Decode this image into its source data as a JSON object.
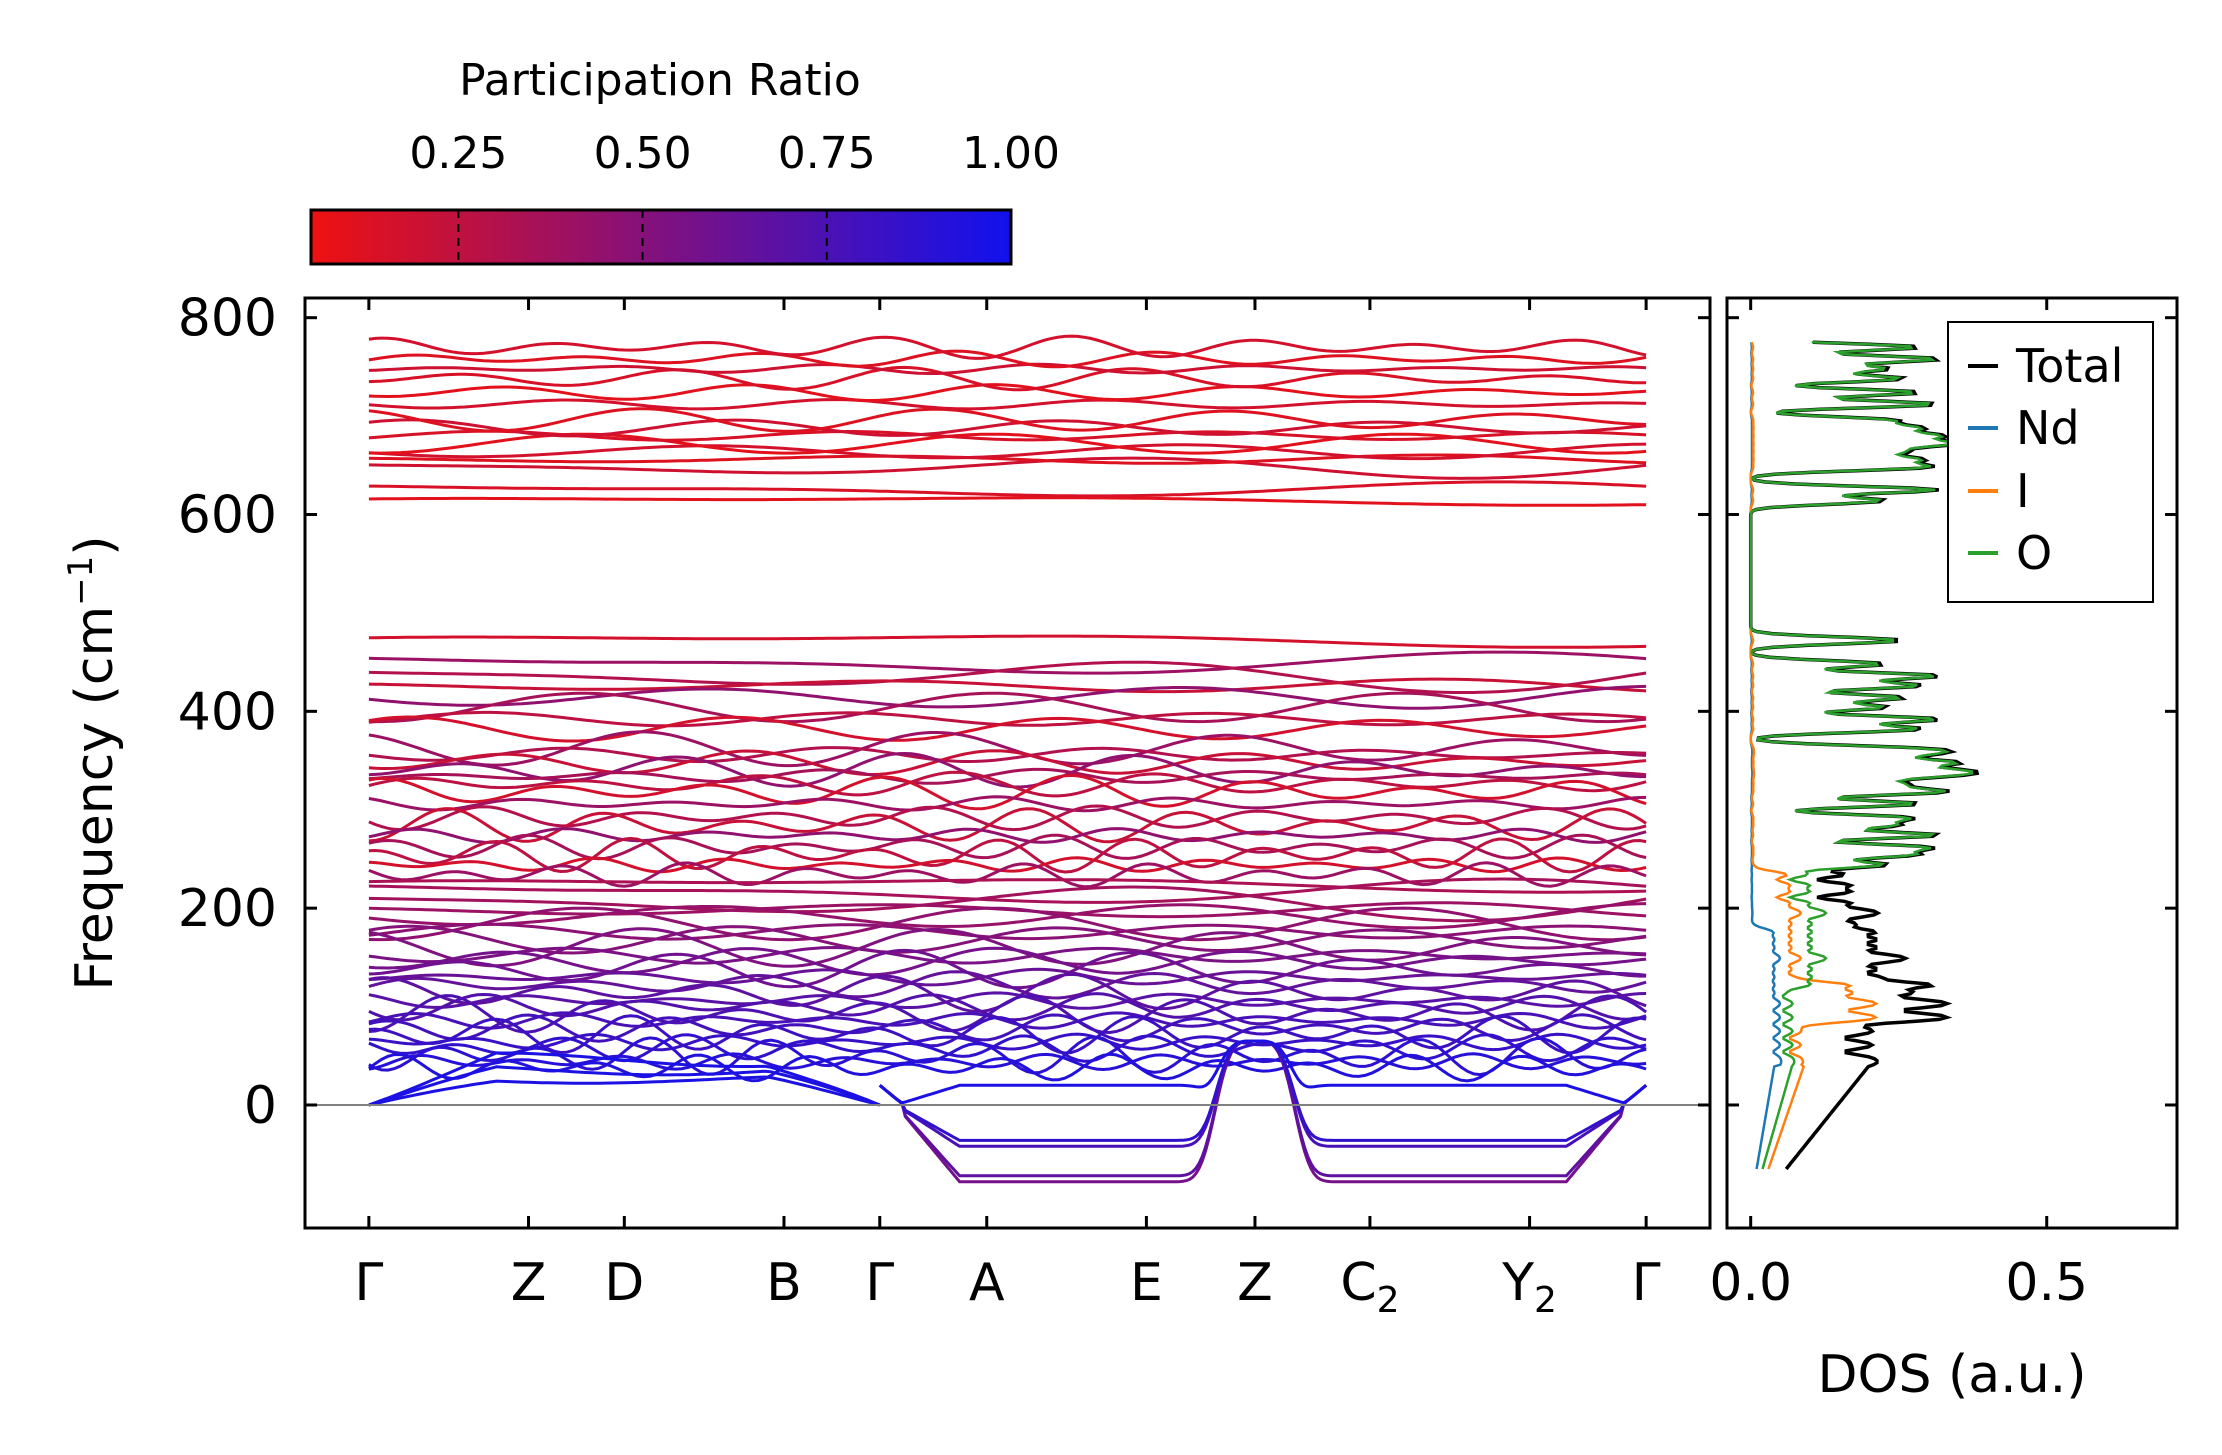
{
  "colors": {
    "low_pr": "#ee1111",
    "high_pr": "#1111ee",
    "axis": "#000000",
    "zero_line": "#808080",
    "total": "#000000",
    "nd": "#1f77b4",
    "i": "#ff7f0e",
    "o": "#2ca02c"
  },
  "chart_data": [
    {
      "type": "line",
      "name": "phonon-band-structure",
      "ylabel": "Frequency (cm",
      "ylabel_sup": "−1",
      "ylabel_end": ")",
      "ylim": [
        -125,
        820
      ],
      "yticks": [
        0,
        200,
        400,
        600,
        800
      ],
      "ytick_labels": [
        "0",
        "200",
        "400",
        "600",
        "800"
      ],
      "kpoints": [
        {
          "pos": 0.0,
          "label": "Γ",
          "sub": ""
        },
        {
          "pos": 1.0,
          "label": "Z",
          "sub": ""
        },
        {
          "pos": 1.6,
          "label": "D",
          "sub": ""
        },
        {
          "pos": 2.6,
          "label": "B",
          "sub": ""
        },
        {
          "pos": 3.2,
          "label": "Γ",
          "sub": ""
        },
        {
          "pos": 3.87,
          "label": "A",
          "sub": ""
        },
        {
          "pos": 4.87,
          "label": "E",
          "sub": ""
        },
        {
          "pos": 5.55,
          "label": "Z",
          "sub": ""
        },
        {
          "pos": 6.27,
          "label": "C",
          "sub": "2"
        },
        {
          "pos": 7.27,
          "label": "Y",
          "sub": "2"
        },
        {
          "pos": 8.0,
          "label": "Γ",
          "sub": ""
        }
      ],
      "xlim": [
        -0.4,
        8.4
      ],
      "high_bands": [
        614,
        625,
        648,
        656,
        664,
        672,
        680,
        688,
        696,
        712,
        724,
        738,
        748,
        758,
        770
      ],
      "mid_bands": [
        472,
        448,
        436,
        426,
        414,
        404,
        392,
        382,
        362,
        356,
        348,
        340,
        334,
        326,
        318,
        306,
        292,
        284,
        274,
        262,
        254,
        244,
        234
      ],
      "low_bands": [
        224,
        216,
        206,
        198,
        192,
        184,
        176,
        168,
        160,
        152,
        146,
        138,
        130,
        122,
        114,
        106,
        100,
        92,
        86,
        78,
        72,
        64,
        58,
        50,
        44,
        38
      ],
      "colorbar": {
        "label": "Participation Ratio",
        "range": [
          0.05,
          1.0
        ],
        "ticks": [
          0.25,
          0.5,
          0.75,
          1.0
        ],
        "tick_labels": [
          "0.25",
          "0.50",
          "0.75",
          "1.00"
        ]
      }
    },
    {
      "type": "line",
      "name": "phonon-dos",
      "xlabel": "DOS (a.u.)",
      "xlim": [
        -0.04,
        0.72
      ],
      "xticks": [
        0.0,
        0.5
      ],
      "xtick_labels": [
        "0.0",
        "0.5"
      ],
      "ylim": [
        -125,
        820
      ],
      "legend_position": "top-right",
      "series": [
        {
          "name": "Total",
          "key": "total"
        },
        {
          "name": "Nd",
          "key": "nd"
        },
        {
          "name": "I",
          "key": "i"
        },
        {
          "name": "O",
          "key": "o"
        }
      ]
    }
  ]
}
